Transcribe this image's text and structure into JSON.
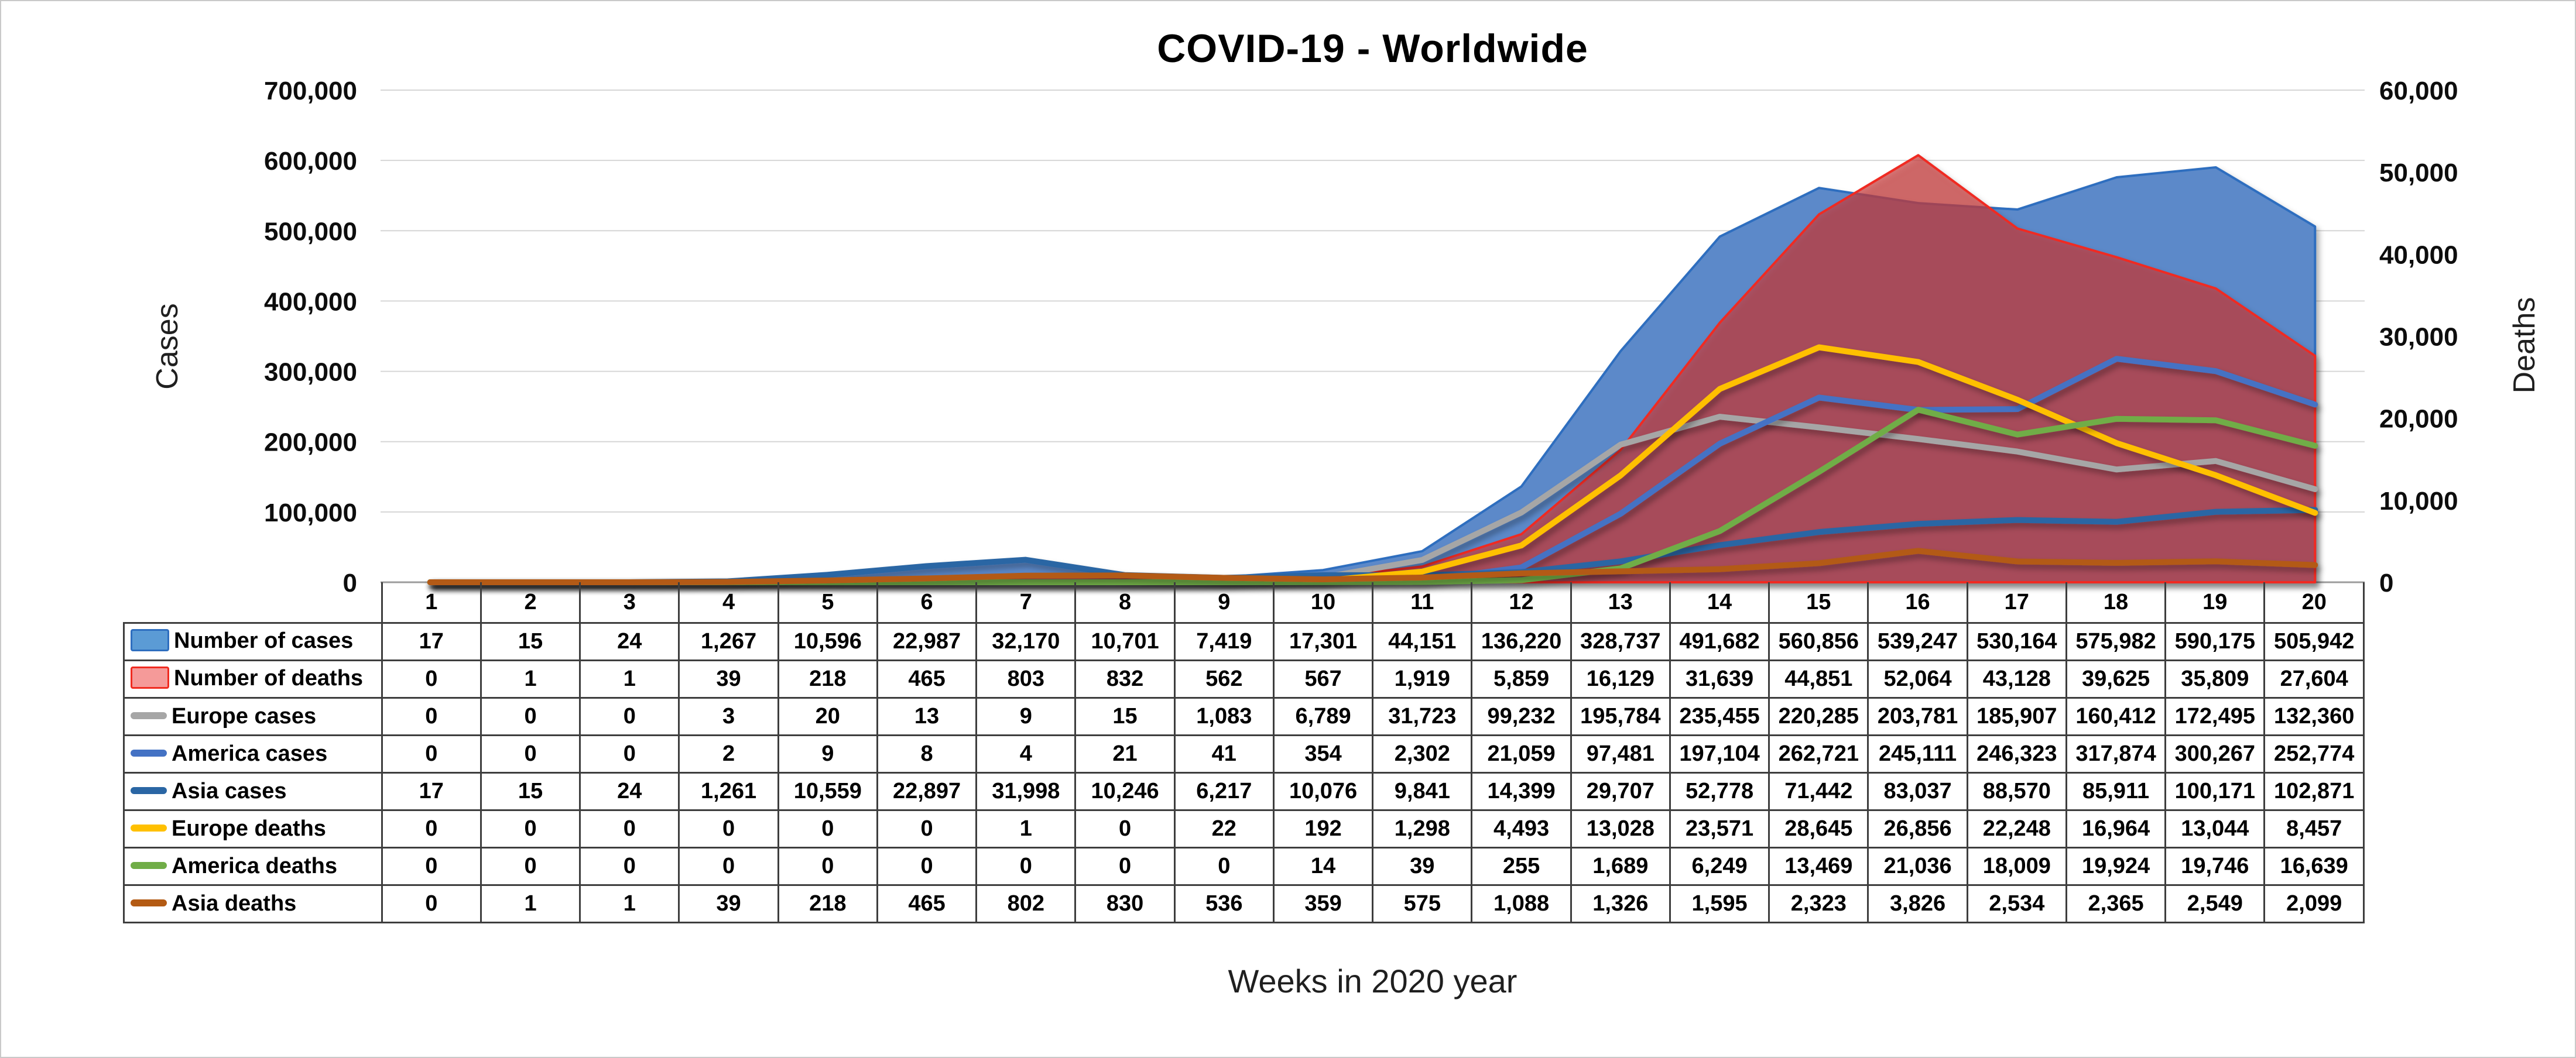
{
  "title": "COVID-19 - Worldwide",
  "left_axis": {
    "title": "Cases",
    "ticks": [
      "700,000",
      "600,000",
      "500,000",
      "400,000",
      "300,000",
      "200,000",
      "100,000",
      "0"
    ]
  },
  "right_axis": {
    "title": "Deaths",
    "ticks": [
      "60,000",
      "50,000",
      "40,000",
      "30,000",
      "20,000",
      "10,000",
      "0"
    ]
  },
  "x_axis": {
    "title": "Weeks in 2020 year"
  },
  "table": {
    "corner": ""
  },
  "chart_data": {
    "type": "area-line-combo",
    "title": "COVID-19 - Worldwide",
    "xlabel": "Weeks in 2020 year",
    "ylabel_left": "Cases",
    "ylabel_right": "Deaths",
    "ylim_cases": [
      0,
      700000
    ],
    "ylim_deaths": [
      0,
      60000
    ],
    "grid": true,
    "categories": [
      1,
      2,
      3,
      4,
      5,
      6,
      7,
      8,
      9,
      10,
      11,
      12,
      13,
      14,
      15,
      16,
      17,
      18,
      19,
      20
    ],
    "series": [
      {
        "name": "Number of cases",
        "kind": "area",
        "axis": "cases",
        "fill": "#5B89C9",
        "stroke": "#2E6EBF",
        "key": "#5B9BD5",
        "values": [
          17,
          15,
          24,
          1267,
          10596,
          22987,
          32170,
          10701,
          7419,
          17301,
          44151,
          136220,
          328737,
          491682,
          560856,
          539247,
          530164,
          575982,
          590175,
          505942
        ]
      },
      {
        "name": "Number of deaths",
        "kind": "area",
        "axis": "deaths",
        "fill": "rgba(198,60,60,0.70)",
        "stroke": "#F02B20",
        "key": "#F59A99",
        "values": [
          0,
          1,
          1,
          39,
          218,
          465,
          803,
          832,
          562,
          567,
          1919,
          5859,
          16129,
          31639,
          44851,
          52064,
          43128,
          39625,
          35809,
          27604
        ]
      },
      {
        "name": "Europe cases",
        "kind": "line",
        "axis": "cases",
        "color": "#A6A6A6",
        "values": [
          0,
          0,
          0,
          3,
          20,
          13,
          9,
          15,
          1083,
          6789,
          31723,
          99232,
          195784,
          235455,
          220285,
          203781,
          185907,
          160412,
          172495,
          132360
        ]
      },
      {
        "name": "America cases",
        "kind": "line",
        "axis": "cases",
        "color": "#4472C4",
        "values": [
          0,
          0,
          0,
          2,
          9,
          8,
          4,
          21,
          41,
          354,
          2302,
          21059,
          97481,
          197104,
          262721,
          245111,
          246323,
          317874,
          300267,
          252774
        ]
      },
      {
        "name": "Asia cases",
        "kind": "line",
        "axis": "cases",
        "color": "#2A66A4",
        "values": [
          17,
          15,
          24,
          1261,
          10559,
          22897,
          31998,
          10246,
          6217,
          10076,
          9841,
          14399,
          29707,
          52778,
          71442,
          83037,
          88570,
          85911,
          100171,
          102871
        ]
      },
      {
        "name": "Europe deaths",
        "kind": "line",
        "axis": "deaths",
        "color": "#FFC000",
        "values": [
          0,
          0,
          0,
          0,
          0,
          0,
          1,
          0,
          22,
          192,
          1298,
          4493,
          13028,
          23571,
          28645,
          26856,
          22248,
          16964,
          13044,
          8457
        ]
      },
      {
        "name": "America deaths",
        "kind": "line",
        "axis": "deaths",
        "color": "#70AD47",
        "values": [
          0,
          0,
          0,
          0,
          0,
          0,
          0,
          0,
          0,
          14,
          39,
          255,
          1689,
          6249,
          13469,
          21036,
          18009,
          19924,
          19746,
          16639
        ]
      },
      {
        "name": "Asia deaths",
        "kind": "line",
        "axis": "deaths",
        "color": "#B35A13",
        "values": [
          0,
          1,
          1,
          39,
          218,
          465,
          802,
          830,
          536,
          359,
          575,
          1088,
          1326,
          1595,
          2323,
          3826,
          2534,
          2365,
          2549,
          2099
        ]
      }
    ]
  }
}
